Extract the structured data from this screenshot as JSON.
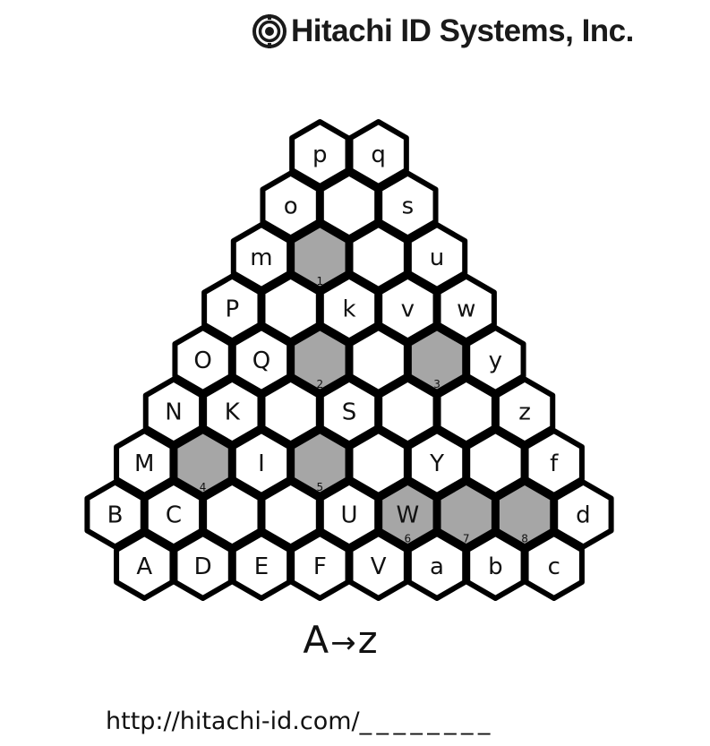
{
  "brand": {
    "name": "Hitachi ID Systems, Inc.",
    "logo_icon": "hitachi-inspire-mark-icon"
  },
  "colors": {
    "hex_fill": "#ffffff",
    "hex_shaded": "#a6a6a6",
    "hex_border": "#000000",
    "text": "#111111"
  },
  "puzzle": {
    "type": "hexagonal-letter-pyramid",
    "rows": [
      {
        "cells": [
          {
            "label": "p"
          },
          {
            "label": "q"
          }
        ]
      },
      {
        "cells": [
          {
            "label": "o"
          },
          {
            "label": ""
          },
          {
            "label": "s"
          }
        ]
      },
      {
        "cells": [
          {
            "label": "m"
          },
          {
            "label": "",
            "shaded": true,
            "number": "1"
          },
          {
            "label": ""
          },
          {
            "label": "u"
          }
        ]
      },
      {
        "cells": [
          {
            "label": "P"
          },
          {
            "label": ""
          },
          {
            "label": "k"
          },
          {
            "label": "v"
          },
          {
            "label": "w"
          }
        ]
      },
      {
        "cells": [
          {
            "label": "O"
          },
          {
            "label": "Q"
          },
          {
            "label": "",
            "shaded": true,
            "number": "2"
          },
          {
            "label": ""
          },
          {
            "label": "",
            "shaded": true,
            "number": "3"
          },
          {
            "label": "y"
          }
        ]
      },
      {
        "cells": [
          {
            "label": "N"
          },
          {
            "label": "K"
          },
          {
            "label": ""
          },
          {
            "label": "S"
          },
          {
            "label": ""
          },
          {
            "label": ""
          },
          {
            "label": "z"
          }
        ]
      },
      {
        "cells": [
          {
            "label": "M"
          },
          {
            "label": "",
            "shaded": true,
            "number": "4"
          },
          {
            "label": "I"
          },
          {
            "label": "",
            "shaded": true,
            "number": "5"
          },
          {
            "label": ""
          },
          {
            "label": "Y"
          },
          {
            "label": ""
          },
          {
            "label": "f"
          }
        ]
      },
      {
        "cells": [
          {
            "label": "B"
          },
          {
            "label": "C"
          },
          {
            "label": ""
          },
          {
            "label": ""
          },
          {
            "label": "U"
          },
          {
            "label": "W",
            "shaded": true,
            "number": "6"
          },
          {
            "label": "",
            "shaded": true,
            "number": "7"
          },
          {
            "label": "",
            "shaded": true,
            "number": "8"
          },
          {
            "label": "d"
          }
        ]
      },
      {
        "cells": [
          {
            "label": "A"
          },
          {
            "label": "D"
          },
          {
            "label": "E"
          },
          {
            "label": "F"
          },
          {
            "label": "V"
          },
          {
            "label": "a"
          },
          {
            "label": "b"
          },
          {
            "label": "c"
          }
        ]
      }
    ]
  },
  "direction": {
    "start": "A",
    "arrow": "→",
    "end": "z"
  },
  "answer": {
    "url_prefix": "http://hitachi-id.com/",
    "blanks": "________"
  }
}
